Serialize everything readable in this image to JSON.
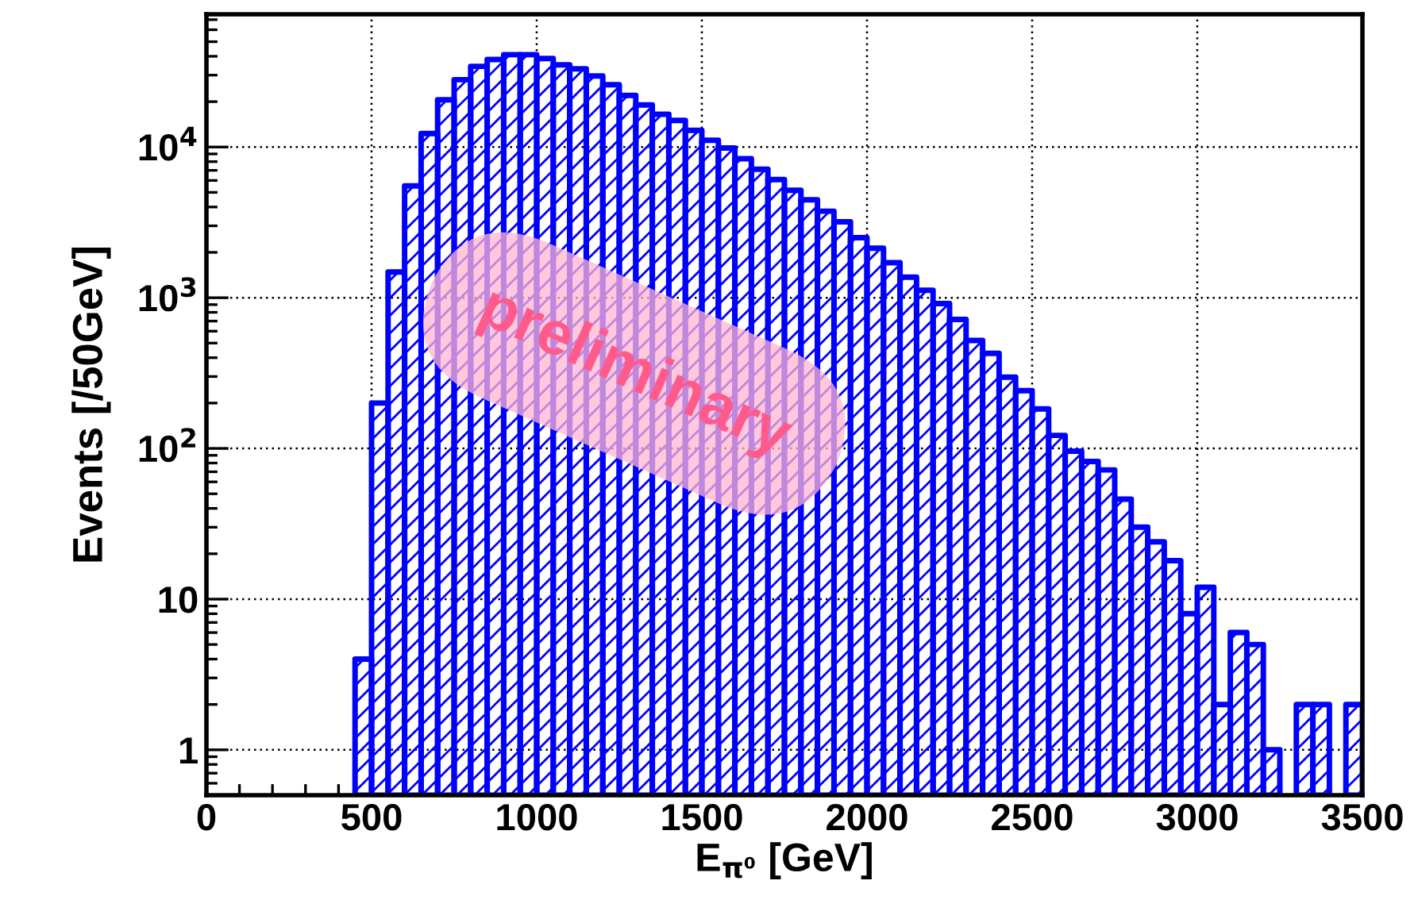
{
  "chart_data": {
    "type": "histogram",
    "xlabel": "E$_{π⁰}$ [GeV]",
    "ylabel": "Events [/50GeV]",
    "bins": [
      0,
      50,
      100,
      150,
      200,
      250,
      300,
      350,
      400,
      450,
      500,
      550,
      600,
      650,
      700,
      750,
      800,
      850,
      900,
      950,
      1000,
      1050,
      1100,
      1150,
      1200,
      1250,
      1300,
      1350,
      1400,
      1450,
      1500,
      1550,
      1600,
      1650,
      1700,
      1750,
      1800,
      1850,
      1900,
      1950,
      2000,
      2050,
      2100,
      2150,
      2200,
      2250,
      2300,
      2350,
      2400,
      2450,
      2500,
      2550,
      2600,
      2650,
      2700,
      2750,
      2800,
      2850,
      2900,
      2950,
      3000,
      3050,
      3100,
      3150,
      3200,
      3250,
      3300,
      3350,
      3400,
      3450,
      3500
    ],
    "values": [
      null,
      null,
      null,
      null,
      null,
      null,
      null,
      null,
      null,
      4,
      200,
      1480,
      5520,
      12300,
      20600,
      28000,
      34300,
      38100,
      41000,
      41000,
      38700,
      35100,
      33000,
      29600,
      25900,
      22000,
      19000,
      16500,
      15000,
      12900,
      11100,
      9860,
      8370,
      7130,
      6080,
      5170,
      4470,
      3750,
      3190,
      2500,
      2130,
      1710,
      1370,
      1120,
      914,
      718,
      521,
      427,
      297,
      242,
      183,
      122,
      96,
      82,
      72,
      46,
      30,
      24,
      18,
      8,
      12,
      2,
      6,
      5,
      1,
      null,
      2,
      2,
      null,
      2
    ],
    "color": "#0000ff",
    "log": "y",
    "xlim": [
      0,
      3500
    ],
    "xticks": [
      0,
      500,
      1000,
      1500,
      2000,
      2500,
      3000,
      3500
    ],
    "ylim": [
      0.5,
      76000
    ],
    "yticks": [
      1,
      10,
      {
        "value": 100,
        "label": "10$^{2}$"
      },
      {
        "value": 1000,
        "label": "10$^{3}$"
      },
      {
        "value": 10000,
        "label": "10$^{4}$"
      }
    ],
    "grid": true,
    "annotations": [
      "preliminary"
    ]
  }
}
